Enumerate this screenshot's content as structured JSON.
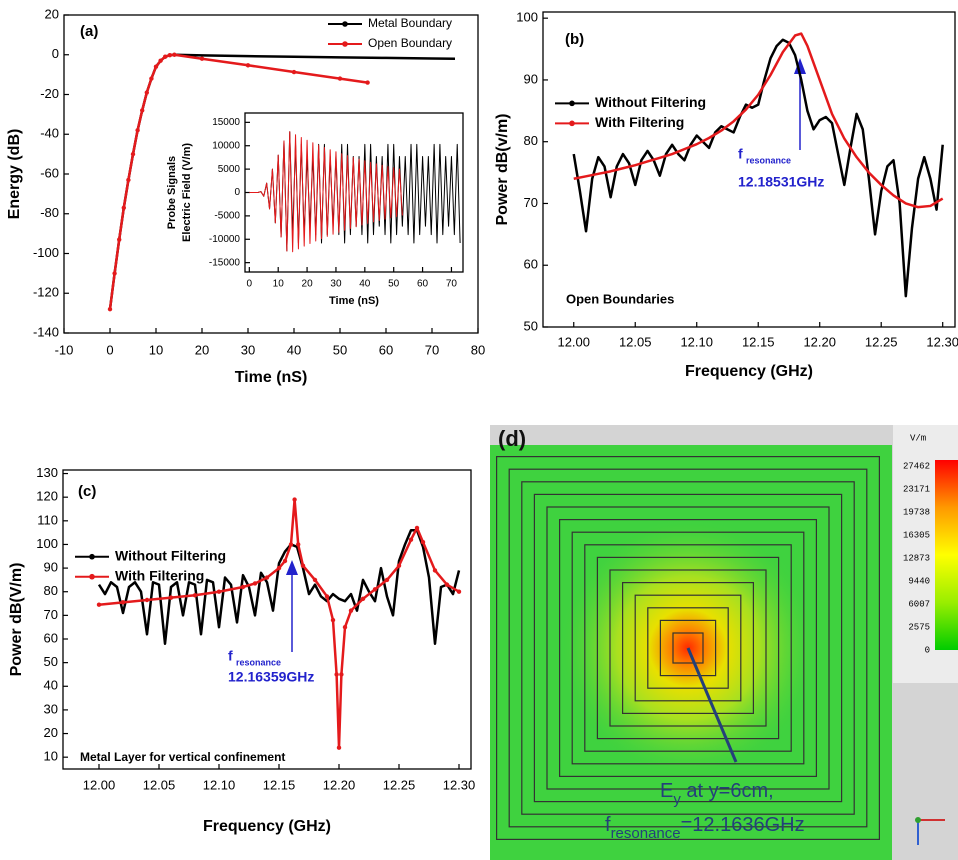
{
  "chart_data": [
    {
      "type": "line",
      "panel_label": "(a)",
      "xlabel": "Time (nS)",
      "ylabel": [
        "Energy (dB)"
      ],
      "xlim": [
        -10,
        80
      ],
      "xticks": [
        -10,
        0,
        10,
        20,
        30,
        40,
        50,
        60,
        70,
        80
      ],
      "ylim": [
        -140,
        20
      ],
      "yticks": [
        -140,
        -120,
        -100,
        -80,
        -60,
        -40,
        -20,
        0,
        20
      ],
      "legend": "upper right",
      "series": [
        {
          "name": "Metal Boundary",
          "color": "#000000",
          "marker": false,
          "x": [
            0,
            1,
            2,
            3,
            4,
            5,
            6,
            7,
            8,
            9,
            10,
            11,
            12,
            13,
            14,
            20,
            30,
            40,
            50,
            60,
            70,
            75
          ],
          "values": [
            -128,
            -110,
            -93,
            -77,
            -63,
            -50,
            -38,
            -28,
            -19,
            -12,
            -6,
            -3,
            -1,
            -0.2,
            0,
            -0.3,
            -0.7,
            -1,
            -1.3,
            -1.6,
            -1.9,
            -2
          ]
        },
        {
          "name": "Open Boundary",
          "color": "#e41a1c",
          "marker": true,
          "x": [
            0,
            1,
            2,
            3,
            4,
            5,
            6,
            7,
            8,
            9,
            10,
            11,
            12,
            13,
            14,
            20,
            30,
            40,
            50,
            56
          ],
          "values": [
            -128,
            -110,
            -93,
            -77,
            -63,
            -50,
            -38,
            -28,
            -19,
            -12,
            -6,
            -3,
            -1,
            -0.2,
            0,
            -2,
            -5.3,
            -8.7,
            -12,
            -14
          ]
        }
      ]
    },
    {
      "type": "line",
      "xlabel": "Time (nS)",
      "ylabel": [
        "Probe Signals",
        "Electric Field (V/m)"
      ],
      "xlim": [
        -1.5,
        74
      ],
      "xticks": [
        0,
        10,
        20,
        30,
        40,
        50,
        60,
        70
      ],
      "ylim": [
        -17000,
        17000
      ],
      "yticks": [
        -15000,
        -10000,
        -5000,
        0,
        5000,
        10000,
        15000
      ],
      "series": [
        {
          "color": "#000000",
          "marker": false,
          "x": [
            0,
            1,
            2,
            3,
            4,
            5,
            6,
            7,
            8,
            9,
            10,
            11,
            12,
            13,
            14,
            15,
            16,
            17,
            18,
            19,
            20,
            21,
            22,
            23,
            24,
            25,
            26,
            27,
            28,
            29,
            30,
            31,
            32,
            33,
            34,
            35,
            36,
            37,
            38,
            39,
            40,
            41,
            42,
            43,
            44,
            45,
            46,
            47,
            48,
            49,
            50,
            51,
            52,
            53,
            54,
            55,
            56,
            57,
            58,
            59,
            60,
            61,
            62,
            63,
            64,
            65,
            66,
            67,
            68,
            69,
            70,
            71,
            72,
            73
          ],
          "values": [
            0,
            0,
            0,
            0,
            200,
            -800,
            2000,
            -3500,
            5000,
            -6500,
            8000,
            -9500,
            11000,
            -12500,
            13000,
            -9000,
            10300,
            -10800,
            10300,
            -9000,
            7700,
            -7200,
            7700,
            -9000,
            10300,
            -10800,
            10300,
            -9000,
            7700,
            -7200,
            7700,
            -9000,
            10300,
            -10800,
            10300,
            -9000,
            7700,
            -7200,
            7700,
            -9000,
            10300,
            -10800,
            10300,
            -9000,
            7700,
            -7200,
            7700,
            -9000,
            10300,
            -10800,
            10300,
            -9000,
            7700,
            -7200,
            7700,
            -9000,
            10300,
            -10800,
            10300,
            -9000,
            7700,
            -7200,
            7700,
            -9000,
            10300,
            -10800,
            10300,
            -9000,
            7700,
            -7200,
            7700,
            -9000,
            10300,
            -10800
          ]
        },
        {
          "color": "#e41a1c",
          "marker": false,
          "x": [
            0,
            1,
            2,
            3,
            4,
            5,
            6,
            7,
            8,
            9,
            10,
            11,
            12,
            13,
            14,
            15,
            16,
            17,
            18,
            19,
            20,
            21,
            22,
            23,
            24,
            25,
            26,
            27,
            28,
            29,
            30,
            31,
            32,
            33,
            34,
            35,
            36,
            37,
            38,
            39,
            40,
            41,
            42,
            43,
            44,
            45,
            46,
            47,
            48,
            49,
            50,
            51,
            52,
            53
          ],
          "values": [
            0,
            0,
            0,
            0,
            200,
            -800,
            2000,
            -3500,
            5000,
            -6500,
            8000,
            -9500,
            11000,
            -12500,
            13000,
            -12680,
            12360,
            -12060,
            11760,
            -11470,
            11180,
            -10910,
            10640,
            -10370,
            10120,
            -9870,
            9620,
            -9380,
            9150,
            -8930,
            8710,
            -8490,
            8280,
            -8080,
            7880,
            -7680,
            7490,
            -7310,
            7130,
            -6950,
            6780,
            -6610,
            6450,
            -6290,
            6130,
            -5980,
            5830,
            -5690,
            5550,
            -5410,
            5280,
            -5150,
            5020,
            -4900
          ]
        }
      ]
    },
    {
      "type": "line",
      "panel_label": "(b)",
      "xlabel": "Frequency (GHz)",
      "ylabel": [
        "Power dB(v/m)"
      ],
      "xlim": [
        11.975,
        12.31
      ],
      "xticks": [
        {
          "value": 12,
          "label": "12.00"
        },
        12.05,
        {
          "value": 12.1,
          "label": "12.10"
        },
        12.15,
        {
          "value": 12.2,
          "label": "12.20"
        },
        12.25,
        {
          "value": 12.3,
          "label": "12.30"
        }
      ],
      "ylim": [
        50,
        101
      ],
      "yticks": [
        50,
        60,
        70,
        80,
        90,
        100
      ],
      "legend": "upper left",
      "annotation": {
        "symbol": "f",
        "subscript": "resonance",
        "value": "12.18531GHz",
        "note": "Open Boundaries"
      },
      "series": [
        {
          "name": "Without Filtering",
          "color": "#000000",
          "marker": false,
          "x": [
            12,
            12.005,
            12.01,
            12.015,
            12.02,
            12.025,
            12.03,
            12.035,
            12.04,
            12.045,
            12.05,
            12.055,
            12.06,
            12.065,
            12.07,
            12.075,
            12.08,
            12.085,
            12.09,
            12.095,
            12.1,
            12.105,
            12.11,
            12.115,
            12.12,
            12.125,
            12.13,
            12.135,
            12.14,
            12.145,
            12.15,
            12.155,
            12.16,
            12.165,
            12.17,
            12.175,
            12.18,
            12.185,
            12.19,
            12.195,
            12.2,
            12.205,
            12.21,
            12.215,
            12.22,
            12.225,
            12.23,
            12.235,
            12.24,
            12.245,
            12.25,
            12.255,
            12.26,
            12.265,
            12.27,
            12.275,
            12.28,
            12.285,
            12.29,
            12.295,
            12.3
          ],
          "values": [
            78,
            72,
            65.5,
            74,
            77.5,
            76,
            71,
            76,
            78,
            76.5,
            73,
            77,
            78.5,
            77,
            74.5,
            78,
            79.5,
            78,
            77,
            79.5,
            81,
            80,
            79,
            81.5,
            82.5,
            82,
            81.5,
            84,
            86,
            85.5,
            86,
            90,
            93.5,
            95.5,
            96.5,
            96,
            94,
            90,
            85,
            82,
            83.5,
            84,
            83,
            78,
            73,
            79,
            84.5,
            82,
            74,
            65,
            72,
            76,
            77,
            70,
            55,
            66,
            74,
            77.5,
            74,
            69,
            79.5
          ]
        },
        {
          "name": "With Filtering",
          "color": "#e41a1c",
          "marker": false,
          "x": [
            12,
            12.01,
            12.02,
            12.03,
            12.04,
            12.05,
            12.06,
            12.07,
            12.08,
            12.09,
            12.1,
            12.11,
            12.12,
            12.13,
            12.14,
            12.15,
            12.16,
            12.17,
            12.18,
            12.185,
            12.19,
            12.2,
            12.21,
            12.22,
            12.23,
            12.24,
            12.25,
            12.26,
            12.27,
            12.28,
            12.29,
            12.3
          ],
          "values": [
            74,
            74.4,
            74.8,
            75.2,
            75.7,
            76.2,
            76.8,
            77.4,
            78,
            78.8,
            79.6,
            80.6,
            81.8,
            83.3,
            85.2,
            87.6,
            90.8,
            94.5,
            97.2,
            97.5,
            95.5,
            90,
            84.5,
            80.5,
            77.5,
            75,
            73,
            71.3,
            70,
            69.4,
            69.6,
            70.8
          ]
        }
      ]
    },
    {
      "type": "line",
      "panel_label": "(c)",
      "xlabel": "Frequency (GHz)",
      "ylabel": [
        "Power dB(V/m)"
      ],
      "xlim": [
        11.97,
        12.31
      ],
      "xticks": [
        {
          "value": 12,
          "label": "12.00"
        },
        12.05,
        {
          "value": 12.1,
          "label": "12.10"
        },
        12.15,
        {
          "value": 12.2,
          "label": "12.20"
        },
        12.25,
        {
          "value": 12.3,
          "label": "12.30"
        }
      ],
      "ylim": [
        5,
        131.5
      ],
      "yticks": [
        10,
        20,
        30,
        40,
        50,
        60,
        70,
        80,
        90,
        100,
        110,
        120,
        130
      ],
      "legend": "upper left",
      "annotation": {
        "symbol": "f",
        "subscript": "resonance",
        "value": "12.16359GHz",
        "note": "Metal Layer for vertical confinement"
      },
      "series": [
        {
          "name": "Without Filtering",
          "color": "#000000",
          "marker": false,
          "x": [
            12,
            12.005,
            12.01,
            12.015,
            12.02,
            12.025,
            12.03,
            12.035,
            12.04,
            12.045,
            12.05,
            12.055,
            12.06,
            12.065,
            12.07,
            12.075,
            12.08,
            12.085,
            12.09,
            12.095,
            12.1,
            12.105,
            12.11,
            12.115,
            12.12,
            12.125,
            12.13,
            12.135,
            12.14,
            12.145,
            12.15,
            12.155,
            12.16,
            12.165,
            12.17,
            12.175,
            12.18,
            12.185,
            12.19,
            12.195,
            12.2,
            12.205,
            12.21,
            12.215,
            12.22,
            12.225,
            12.23,
            12.235,
            12.24,
            12.245,
            12.25,
            12.255,
            12.26,
            12.265,
            12.27,
            12.275,
            12.28,
            12.285,
            12.29,
            12.295,
            12.3
          ],
          "values": [
            83,
            79,
            84,
            82,
            71,
            82,
            84,
            80,
            62,
            84,
            83,
            58,
            82,
            84,
            70,
            84,
            83,
            62,
            85,
            84,
            65,
            86,
            83,
            67,
            87,
            82,
            70,
            88,
            84,
            72,
            92,
            97,
            100,
            99,
            90,
            79,
            83,
            78,
            76,
            79,
            77,
            76,
            79,
            72,
            85,
            80,
            76,
            90,
            78,
            70,
            93,
            100,
            106,
            106,
            99,
            86,
            58,
            82,
            83,
            79,
            89
          ]
        },
        {
          "name": "With Filtering",
          "color": "#e41a1c",
          "marker": true,
          "x": [
            12,
            12.02,
            12.04,
            12.06,
            12.08,
            12.1,
            12.12,
            12.13,
            12.14,
            12.15,
            12.155,
            12.16,
            12.163,
            12.166,
            12.17,
            12.18,
            12.19,
            12.195,
            12.198,
            12.2,
            12.202,
            12.205,
            12.21,
            12.22,
            12.23,
            12.24,
            12.25,
            12.26,
            12.265,
            12.27,
            12.28,
            12.29,
            12.3
          ],
          "values": [
            74.5,
            75.5,
            76.5,
            77.5,
            78.5,
            80,
            82,
            83.5,
            86,
            90,
            93,
            100,
            119,
            100,
            91,
            85,
            78,
            68,
            45,
            14,
            45,
            65,
            72,
            77,
            81,
            85,
            91,
            102,
            107,
            101,
            89,
            83,
            80
          ]
        }
      ]
    }
  ],
  "field_map": {
    "panel_label": "(d)",
    "colorbar_unit": "V/m",
    "colorbar_ticks": [
      27462,
      23171,
      19738,
      16305,
      12873,
      9440,
      6007,
      2575,
      0
    ],
    "annotation": {
      "line1": [
        "E",
        "y",
        " at y=6cm,"
      ],
      "line2": [
        "f",
        "resonance",
        "=12.1636GHz"
      ]
    }
  }
}
